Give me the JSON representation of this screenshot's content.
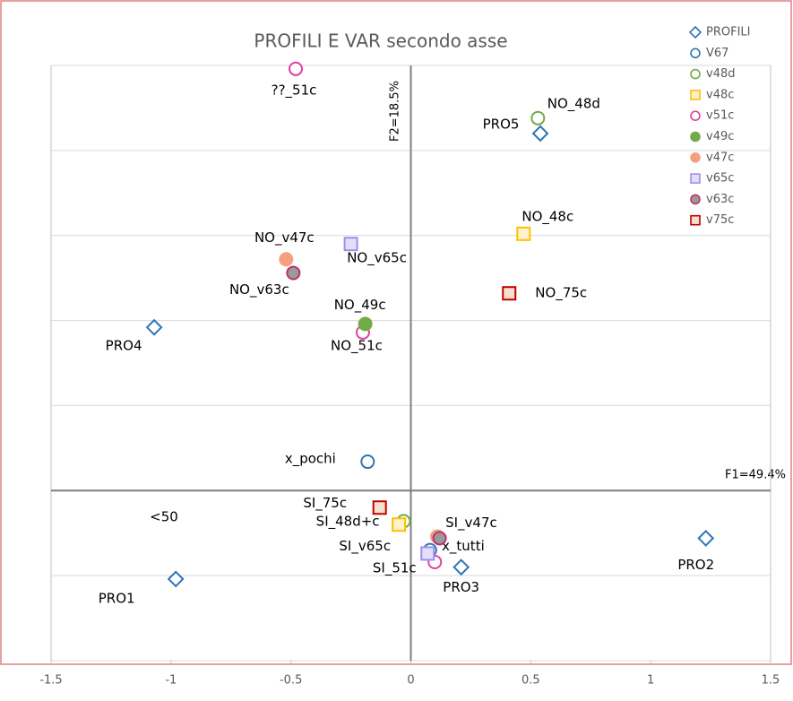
{
  "chart_data": {
    "type": "scatter",
    "title": "PROFILI E VAR secondo asse",
    "x_axis_label": "F1=49.4%",
    "y_axis_label": "F2=18.5%",
    "annotation": "<50",
    "xlim": [
      -1.5,
      1.5
    ],
    "xticks": [
      -1.5,
      -1,
      -0.5,
      0,
      0.5,
      1,
      1.5
    ],
    "ylim": [
      -1,
      2.5
    ],
    "yticks": [
      -1,
      -0.5,
      0,
      0.5,
      1,
      1.5,
      2,
      2.5
    ],
    "grid": true,
    "legend": "top-right",
    "series": [
      {
        "name": "PROFILI",
        "color": "#2e75b6",
        "marker": "diamond",
        "fill": "#ffffff",
        "x": [
          0.54,
          -1.07,
          -0.98,
          0.21,
          1.23
        ],
        "y": [
          2.1,
          0.96,
          -0.52,
          -0.45,
          -0.28
        ],
        "labels": [
          "PRO5",
          "PRO4",
          "PRO1",
          "PRO3",
          "PRO2"
        ]
      },
      {
        "name": "V67",
        "color": "#2e75b6",
        "marker": "circle",
        "fill": "#ffffff",
        "x": [
          -0.18,
          0.08
        ],
        "y": [
          0.17,
          -0.35
        ],
        "labels": [
          "x_pochi",
          "x_tutti"
        ]
      },
      {
        "name": "v48d",
        "color": "#70ad47",
        "marker": "circle",
        "fill": "#ffffff",
        "x": [
          0.53,
          -0.03
        ],
        "y": [
          2.19,
          -0.18
        ],
        "labels": [
          "NO_48d",
          null
        ]
      },
      {
        "name": "v48c",
        "color": "#ffc000",
        "marker": "square",
        "fill": "#fff2cc",
        "x": [
          0.47,
          -0.05
        ],
        "y": [
          1.51,
          -0.2
        ],
        "labels": [
          "NO_48c",
          "SI_48d+c"
        ]
      },
      {
        "name": "v51c",
        "color": "#e040a0",
        "marker": "circle",
        "fill": "#ffffff",
        "x": [
          -0.48,
          -0.2,
          0.1
        ],
        "y": [
          2.48,
          0.93,
          -0.42
        ],
        "labels": [
          "??_51c",
          "NO_51c",
          "SI_51c"
        ]
      },
      {
        "name": "v49c",
        "color": "#70ad47",
        "marker": "circle",
        "fill": "#70ad47",
        "x": [
          -0.19
        ],
        "y": [
          0.98
        ],
        "labels": [
          "NO_49c"
        ]
      },
      {
        "name": "v47c",
        "color": "#f4a080",
        "marker": "circle",
        "fill": "#f4a080",
        "x": [
          -0.52,
          0.11
        ],
        "y": [
          1.36,
          -0.27
        ],
        "labels": [
          "NO_v47c",
          "SI_v47c"
        ]
      },
      {
        "name": "v65c",
        "color": "#9f8fe8",
        "marker": "square",
        "fill": "#e4defc",
        "x": [
          -0.25,
          0.07
        ],
        "y": [
          1.45,
          -0.37
        ],
        "labels": [
          "NO_v65c",
          "SI_v65c"
        ]
      },
      {
        "name": "v63c",
        "color": "#c0306a",
        "marker": "circle",
        "fill": "#9a9a9a",
        "x": [
          -0.49,
          0.12
        ],
        "y": [
          1.28,
          -0.28
        ],
        "labels": [
          "NO_v63c",
          null
        ]
      },
      {
        "name": "v75c",
        "color": "#c00000",
        "marker": "square",
        "fill": "#fbe0cc",
        "x": [
          0.41,
          -0.13
        ],
        "y": [
          1.16,
          -0.1
        ],
        "labels": [
          "NO_75c",
          "SI_75c"
        ]
      }
    ]
  }
}
